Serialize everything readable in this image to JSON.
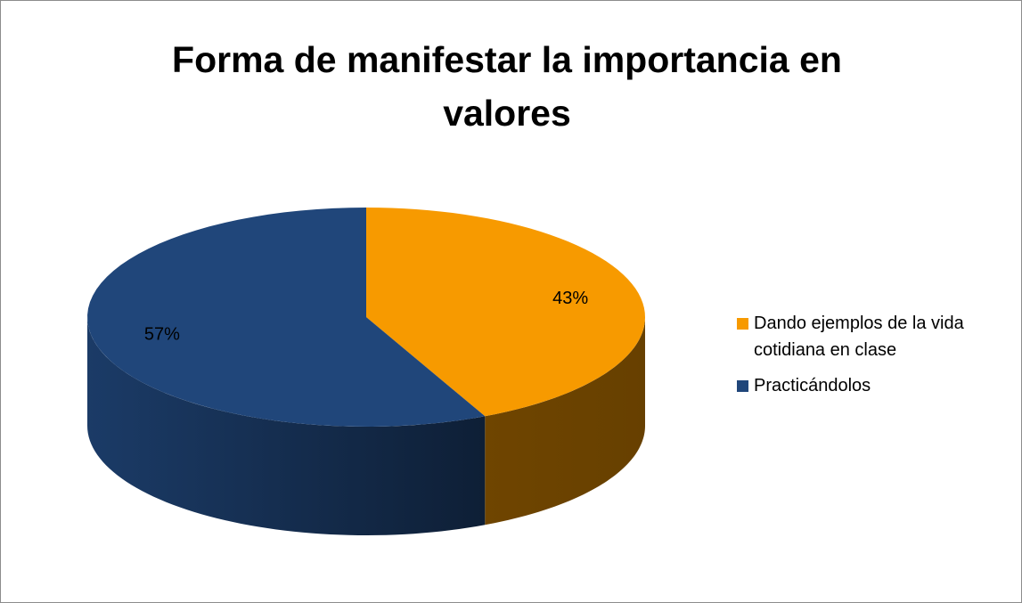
{
  "chart_data": {
    "type": "pie",
    "title": "Forma de manifestar la importancia en valores",
    "categories": [
      "Dando ejemplos de la vida cotidiana en clase",
      "Practicándolos"
    ],
    "values": [
      43,
      57
    ],
    "value_labels": [
      "43%",
      "57%"
    ],
    "colors": [
      "#f79a00",
      "#20467a"
    ],
    "legend": "right"
  }
}
